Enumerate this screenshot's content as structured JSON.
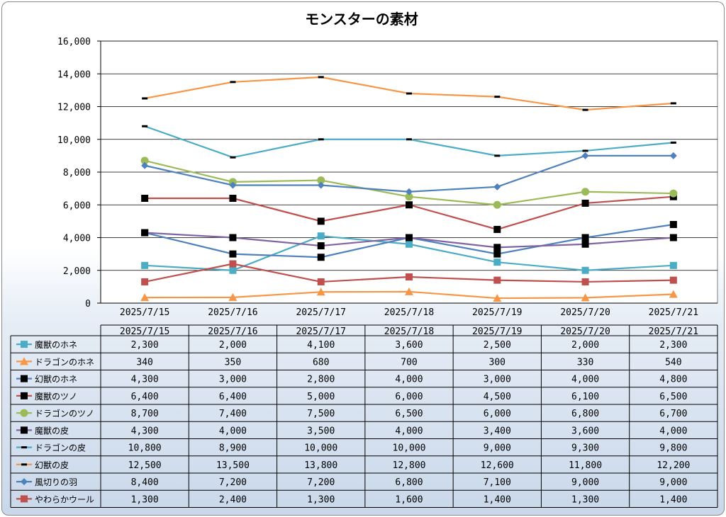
{
  "chart_data": {
    "type": "line",
    "title": "モンスターの素材",
    "xlabel": "",
    "ylabel": "",
    "ylim": [
      0,
      16000
    ],
    "yticks": [
      "0",
      "2,000",
      "4,000",
      "6,000",
      "8,000",
      "10,000",
      "12,000",
      "14,000",
      "16,000"
    ],
    "grid": true,
    "legend_placement": "data-table",
    "categories": [
      "2025/7/15",
      "2025/7/16",
      "2025/7/17",
      "2025/7/18",
      "2025/7/19",
      "2025/7/20",
      "2025/7/21"
    ],
    "series": [
      {
        "name": "魔獣のホネ",
        "color": "#4bacc6",
        "marker": "square",
        "values": [
          2300,
          2000,
          4100,
          3600,
          2500,
          2000,
          2300
        ],
        "labels": [
          "2,300",
          "2,000",
          "4,100",
          "3,600",
          "2,500",
          "2,000",
          "2,300"
        ]
      },
      {
        "name": "ドラゴンのホネ",
        "color": "#f79646",
        "marker": "triangle",
        "values": [
          340,
          350,
          680,
          700,
          300,
          330,
          540
        ],
        "labels": [
          "340",
          "350",
          "680",
          "700",
          "300",
          "330",
          "540"
        ]
      },
      {
        "name": "幻獣のホネ",
        "color": "#4f81bd",
        "marker": "square-black",
        "values": [
          4300,
          3000,
          2800,
          4000,
          3000,
          4000,
          4800
        ],
        "labels": [
          "4,300",
          "3,000",
          "2,800",
          "4,000",
          "3,000",
          "4,000",
          "4,800"
        ]
      },
      {
        "name": "魔獣のツノ",
        "color": "#c0504d",
        "marker": "square-black",
        "values": [
          6400,
          6400,
          5000,
          6000,
          4500,
          6100,
          6500
        ],
        "labels": [
          "6,400",
          "6,400",
          "5,000",
          "6,000",
          "4,500",
          "6,100",
          "6,500"
        ]
      },
      {
        "name": "ドラゴンのツノ",
        "color": "#9bbb59",
        "marker": "circle",
        "values": [
          8700,
          7400,
          7500,
          6500,
          6000,
          6800,
          6700
        ],
        "labels": [
          "8,700",
          "7,400",
          "7,500",
          "6,500",
          "6,000",
          "6,800",
          "6,700"
        ]
      },
      {
        "name": "魔獣の皮",
        "color": "#8064a2",
        "marker": "square-black",
        "values": [
          4300,
          4000,
          3500,
          4000,
          3400,
          3600,
          4000
        ],
        "labels": [
          "4,300",
          "4,000",
          "3,500",
          "4,000",
          "3,400",
          "3,600",
          "4,000"
        ]
      },
      {
        "name": "ドラゴンの皮",
        "color": "#4bacc6",
        "marker": "dash",
        "values": [
          10800,
          8900,
          10000,
          10000,
          9000,
          9300,
          9800
        ],
        "labels": [
          "10,800",
          "8,900",
          "10,000",
          "10,000",
          "9,000",
          "9,300",
          "9,800"
        ]
      },
      {
        "name": "幻獣の皮",
        "color": "#f79646",
        "marker": "dash",
        "values": [
          12500,
          13500,
          13800,
          12800,
          12600,
          11800,
          12200
        ],
        "labels": [
          "12,500",
          "13,500",
          "13,800",
          "12,800",
          "12,600",
          "11,800",
          "12,200"
        ]
      },
      {
        "name": "風切りの羽",
        "color": "#4f81bd",
        "marker": "diamond",
        "values": [
          8400,
          7200,
          7200,
          6800,
          7100,
          9000,
          9000
        ],
        "labels": [
          "8,400",
          "7,200",
          "7,200",
          "6,800",
          "7,100",
          "9,000",
          "9,000"
        ]
      },
      {
        "name": "やわらかウール",
        "color": "#c0504d",
        "marker": "square",
        "values": [
          1300,
          2400,
          1300,
          1600,
          1400,
          1300,
          1400
        ],
        "labels": [
          "1,300",
          "2,400",
          "1,300",
          "1,600",
          "1,400",
          "1,300",
          "1,400"
        ]
      }
    ]
  }
}
